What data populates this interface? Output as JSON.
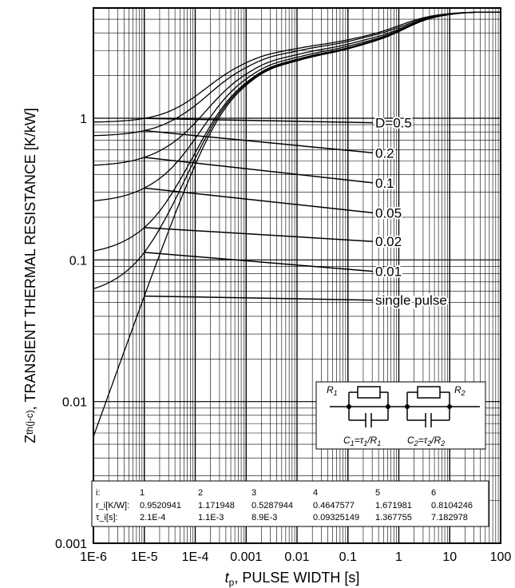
{
  "chart_data": {
    "type": "line",
    "x_scale": "log",
    "y_scale": "log",
    "xlim": [
      1e-06,
      100
    ],
    "ylim": [
      0.001,
      6
    ],
    "grid": true,
    "xlabel_var": "t",
    "xlabel_sub": "p",
    "xlabel_rest": ", PULSE WIDTH [s]",
    "ylabel_var": "Z",
    "ylabel_sub": "th(j-c)",
    "ylabel_rest": ", TRANSIENT THERMAL RESISTANCE [K/kW]",
    "x_ticks": [
      {
        "v": 1e-06,
        "label": "1E-6"
      },
      {
        "v": 1e-05,
        "label": "1E-5"
      },
      {
        "v": 0.0001,
        "label": "1E-4"
      },
      {
        "v": 0.001,
        "label": "0.001"
      },
      {
        "v": 0.01,
        "label": "0.01"
      },
      {
        "v": 0.1,
        "label": "0.1"
      },
      {
        "v": 1,
        "label": "1"
      },
      {
        "v": 10,
        "label": "10"
      },
      {
        "v": 100,
        "label": "100"
      }
    ],
    "y_ticks": [
      {
        "v": 0.001,
        "label": "0.001"
      },
      {
        "v": 0.01,
        "label": "0.01"
      },
      {
        "v": 0.1,
        "label": "0.1"
      },
      {
        "v": 1,
        "label": "1"
      }
    ],
    "duty_cycles": [
      {
        "label": "D=0.5",
        "d": 0.5,
        "label_y": 0.93
      },
      {
        "label": "0.2",
        "d": 0.2,
        "label_y": 0.57
      },
      {
        "label": "0.1",
        "d": 0.1,
        "label_y": 0.35
      },
      {
        "label": "0.05",
        "d": 0.05,
        "label_y": 0.215
      },
      {
        "label": "0.02",
        "d": 0.02,
        "label_y": 0.135
      },
      {
        "label": "0.01",
        "d": 0.01,
        "label_y": 0.083
      },
      {
        "label": "single pulse",
        "d": 0,
        "label_y": 0.052
      }
    ],
    "table": {
      "header": [
        "i:",
        "1",
        "2",
        "3",
        "4",
        "5",
        "6"
      ],
      "rows": [
        [
          "r_i[K/W]:",
          "0.9520941",
          "1.171948",
          "0.5287944",
          "0.4647577",
          "1.671981",
          "0.8104246"
        ],
        [
          "τ_i[s]:",
          "2.1E-4",
          "1.1E-3",
          "8.9E-3",
          "0.09325149",
          "1.367755",
          "7.182978"
        ]
      ]
    },
    "foster_r": [
      0.9520941,
      1.171948,
      0.5287944,
      0.4647577,
      1.671981,
      0.8104246
    ],
    "foster_tau": [
      0.00021,
      0.0011,
      0.0089,
      0.09325149,
      1.367755,
      7.182978
    ],
    "inset": {
      "r1": "R",
      "r1_sub": "1",
      "r2": "R",
      "r2_sub": "2",
      "c1": "C",
      "c1_sub": "1",
      "c1_rest": "=τ",
      "c1_tau_sub": "1",
      "c1_div": "/R",
      "c1_div_sub": "1",
      "c2": "C",
      "c2_sub": "2",
      "c2_rest": "=τ",
      "c2_tau_sub": "2",
      "c2_div": "/R",
      "c2_div_sub": "2"
    }
  }
}
